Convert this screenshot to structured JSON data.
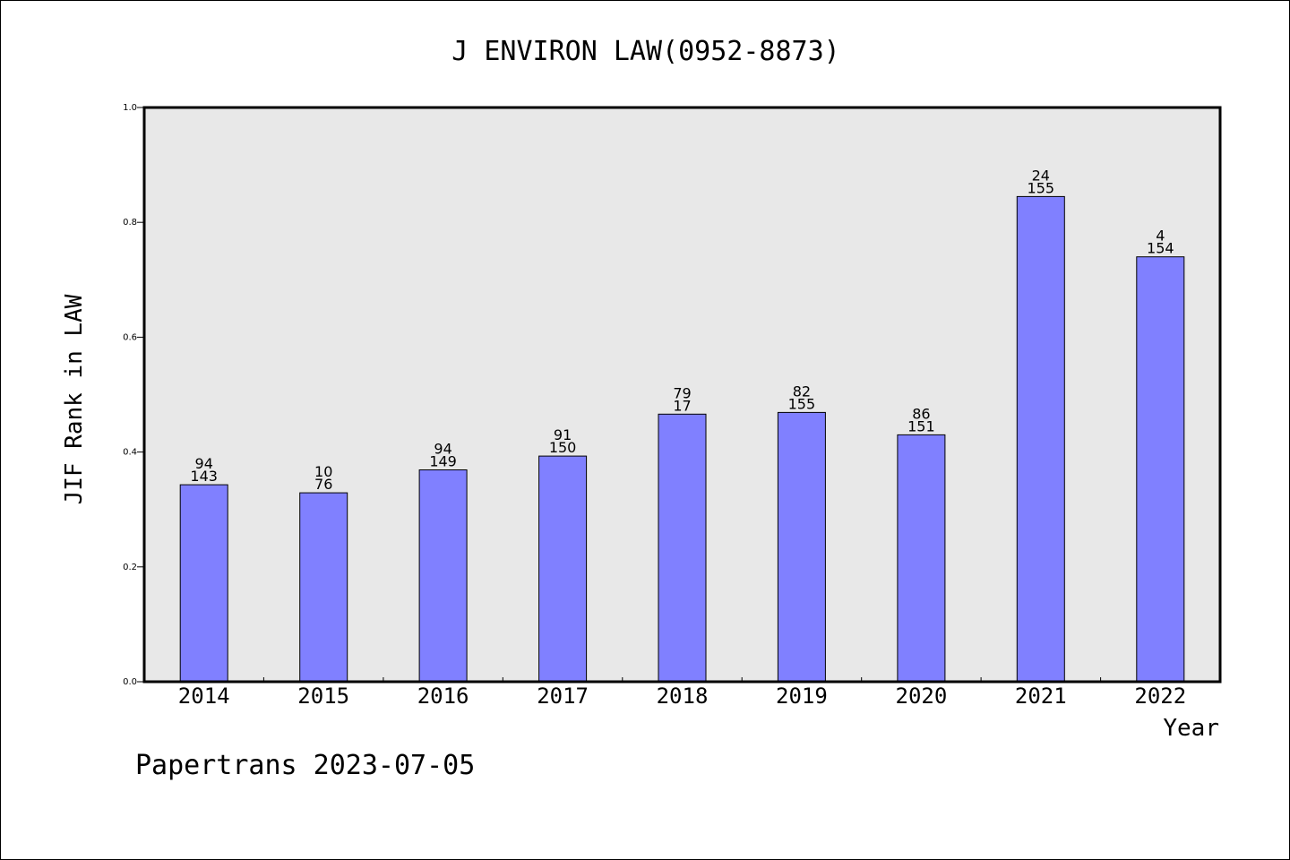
{
  "chart_data": {
    "type": "bar",
    "title": "J ENVIRON LAW(0952-8873)",
    "xlabel": "Year",
    "ylabel": "JIF Rank in LAW",
    "ylim": [
      0,
      1.0
    ],
    "yticks": [
      "0.0",
      "0.2",
      "0.4",
      "0.6",
      "0.8",
      "1.0"
    ],
    "categories": [
      "2014",
      "2015",
      "2016",
      "2017",
      "2018",
      "2019",
      "2020",
      "2021",
      "2022"
    ],
    "values": [
      0.343,
      0.329,
      0.369,
      0.393,
      0.466,
      0.469,
      0.43,
      0.845,
      0.74
    ],
    "rank_labels": [
      "94",
      "10",
      "94",
      "91",
      "79",
      "82",
      "86",
      "24",
      "4"
    ],
    "total_labels": [
      "143",
      "76",
      "149",
      "150",
      "17",
      "155",
      "151",
      "155",
      "154"
    ],
    "bar_color": "#8080ff",
    "plot_background": "#e8e8e8",
    "grid": false
  },
  "footer": "Papertrans 2023-07-05"
}
